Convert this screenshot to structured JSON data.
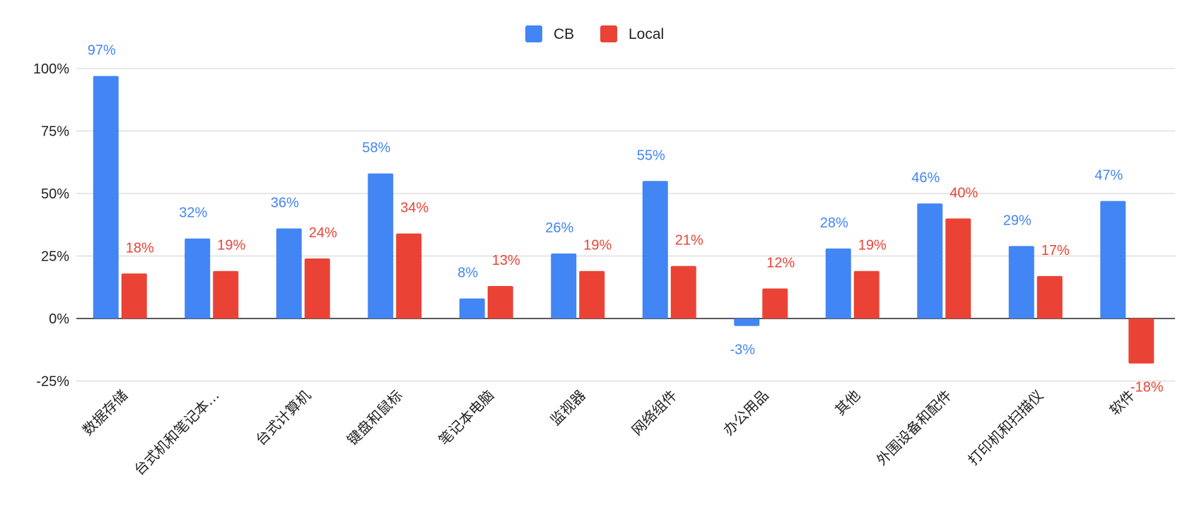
{
  "chart_data": {
    "type": "bar",
    "categories": [
      "数据存储",
      "台式机和笔记本…",
      "台式计算机",
      "键盘和鼠标",
      "笔记本电脑",
      "监视器",
      "网络组件",
      "办公用品",
      "其他",
      "外围设备和配件",
      "打印机和扫描仪",
      "软件"
    ],
    "series": [
      {
        "name": "CB",
        "color": "#4285F4",
        "values": [
          97,
          32,
          36,
          58,
          8,
          26,
          55,
          -3,
          28,
          46,
          29,
          47
        ],
        "labels": [
          "97%",
          "32%",
          "36%",
          "58%",
          "8%",
          "26%",
          "55%",
          "-3%",
          "28%",
          "46%",
          "29%",
          "47%"
        ]
      },
      {
        "name": "Local",
        "color": "#EA4335",
        "values": [
          18,
          19,
          24,
          34,
          13,
          19,
          21,
          12,
          19,
          40,
          17,
          -18
        ],
        "labels": [
          "18%",
          "19%",
          "24%",
          "34%",
          "13%",
          "19%",
          "21%",
          "12%",
          "19%",
          "40%",
          "17%",
          "-18%"
        ]
      }
    ],
    "ylim": [
      -25,
      100
    ],
    "yticks": [
      100,
      75,
      50,
      25,
      0,
      -25
    ],
    "ytick_labels": [
      "100%",
      "75%",
      "50%",
      "25%",
      "0%",
      "-25%"
    ],
    "grid": true,
    "legend_position": "top-center",
    "title": "",
    "xlabel": "",
    "ylabel": ""
  }
}
